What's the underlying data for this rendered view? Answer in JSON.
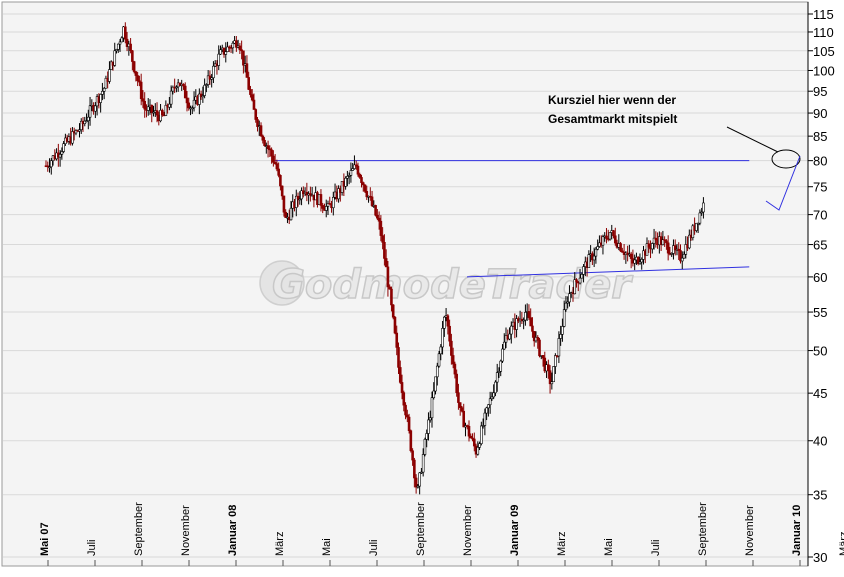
{
  "chart_data": {
    "type": "candlestick",
    "y_scale": "log",
    "ylim": [
      30,
      118
    ],
    "y_ticks": [
      30,
      35,
      40,
      45,
      50,
      55,
      60,
      65,
      70,
      75,
      80,
      85,
      90,
      95,
      100,
      105,
      110,
      115
    ],
    "x_ticks": [
      {
        "label": "Mai 07",
        "bold": true
      },
      {
        "label": "Juli",
        "bold": false
      },
      {
        "label": "September",
        "bold": false
      },
      {
        "label": "November",
        "bold": false
      },
      {
        "label": "Januar 08",
        "bold": true
      },
      {
        "label": "März",
        "bold": false
      },
      {
        "label": "Mai",
        "bold": false
      },
      {
        "label": "Juli",
        "bold": false
      },
      {
        "label": "September",
        "bold": false
      },
      {
        "label": "November",
        "bold": false
      },
      {
        "label": "Januar 09",
        "bold": true
      },
      {
        "label": "März",
        "bold": false
      },
      {
        "label": "Mai",
        "bold": false
      },
      {
        "label": "Juli",
        "bold": false
      },
      {
        "label": "September",
        "bold": false
      },
      {
        "label": "November",
        "bold": false
      },
      {
        "label": "Januar 10",
        "bold": true
      },
      {
        "label": "März",
        "bold": false
      }
    ],
    "price_path": [
      [
        0,
        79
      ],
      [
        1.5,
        87
      ],
      [
        2.5,
        96
      ],
      [
        3.3,
        111
      ],
      [
        4.2,
        91
      ],
      [
        5.0,
        89
      ],
      [
        5.6,
        98
      ],
      [
        6.2,
        91
      ],
      [
        6.8,
        96
      ],
      [
        7.4,
        104
      ],
      [
        8.2,
        108
      ],
      [
        8.8,
        91
      ],
      [
        9.3,
        84
      ],
      [
        9.8,
        79
      ],
      [
        10.2,
        69
      ],
      [
        11.0,
        75
      ],
      [
        12.0,
        71
      ],
      [
        13.2,
        79
      ],
      [
        14.2,
        68
      ],
      [
        15.0,
        48
      ],
      [
        15.8,
        35
      ],
      [
        16.5,
        45
      ],
      [
        17.0,
        55
      ],
      [
        17.6,
        43
      ],
      [
        18.3,
        39
      ],
      [
        19.0,
        45
      ],
      [
        19.6,
        52
      ],
      [
        20.4,
        55
      ],
      [
        21.0,
        50
      ],
      [
        21.5,
        46
      ],
      [
        22.2,
        57
      ],
      [
        23.0,
        62
      ],
      [
        24.0,
        67
      ],
      [
        25.0,
        62
      ],
      [
        26.0,
        66
      ],
      [
        27.0,
        63
      ],
      [
        27.5,
        67
      ],
      [
        28.0,
        72
      ]
    ],
    "series": [
      {
        "name": "",
        "style": "candlestick",
        "up_color": "#000000",
        "down_color": "#8b0000"
      }
    ],
    "annotations": [
      {
        "text_lines": [
          "Kursziel hier wenn der",
          "Gesamtmarkt mitspielt"
        ]
      }
    ],
    "trendlines": [
      {
        "from": [
          9.8,
          80
        ],
        "to": [
          29.5,
          80
        ],
        "color": "#3030e0"
      },
      {
        "from": [
          18.0,
          60
        ],
        "to": [
          29.5,
          61.5
        ],
        "color": "#3030e0"
      }
    ],
    "watermark": "GodmodeTrader",
    "grid": true
  }
}
